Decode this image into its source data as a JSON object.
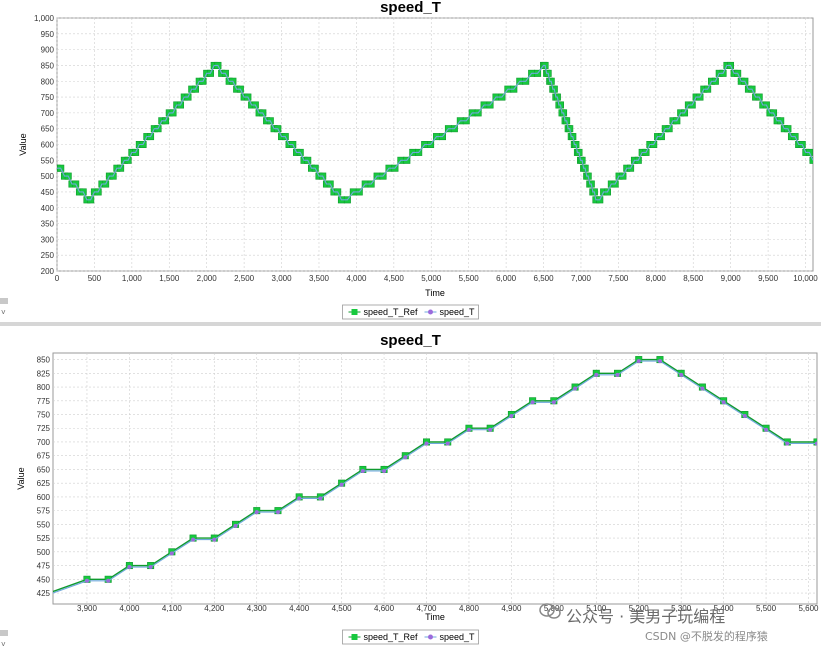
{
  "watermark": {
    "text_main": "公众号 · 美男子玩编程",
    "text_sub": "CSDN @不脱发的程序猿"
  },
  "colors": {
    "ref": "#17c93e",
    "ref_stroke": "#0f9a2e",
    "actual": "#9b6bdc",
    "actual_line": "#6fa8dc",
    "grid": "#cfcfcf"
  },
  "chart_data": [
    {
      "type": "line",
      "title": "speed_T",
      "xlabel": "Time",
      "ylabel": "Value",
      "xlim": [
        0,
        10100
      ],
      "ylim": [
        200,
        1000
      ],
      "xticks": [
        0,
        500,
        1000,
        1500,
        2000,
        2500,
        3000,
        3500,
        4000,
        4500,
        5000,
        5500,
        6000,
        6500,
        7000,
        7500,
        8000,
        8500,
        9000,
        9500,
        10000
      ],
      "xtick_labels": [
        "0",
        "500",
        "1,000",
        "1,500",
        "2,000",
        "2,500",
        "3,000",
        "3,500",
        "4,000",
        "4,500",
        "5,000",
        "5,500",
        "6,000",
        "6,500",
        "7,000",
        "7,500",
        "8,000",
        "8,500",
        "9,000",
        "9,500",
        "10,000"
      ],
      "yticks": [
        200,
        250,
        300,
        350,
        400,
        450,
        500,
        550,
        600,
        650,
        700,
        750,
        800,
        850,
        900,
        950,
        1000
      ],
      "ytick_labels": [
        "200",
        "250",
        "300",
        "350",
        "400",
        "450",
        "500",
        "550",
        "600",
        "650",
        "700",
        "750",
        "800",
        "850",
        "900",
        "950",
        "1,000"
      ],
      "grid": true,
      "legend": "bottom-center",
      "series": [
        {
          "name": "speed_T_Ref",
          "marker": "square",
          "x": [
            0,
            400,
            2100,
            3800,
            6500,
            7200,
            8950,
            10100
          ],
          "y": [
            525,
            425,
            850,
            425,
            850,
            425,
            850,
            550
          ]
        },
        {
          "name": "speed_T",
          "marker": "circle",
          "x": [
            0,
            400,
            2100,
            3800,
            6500,
            7200,
            8950,
            10100
          ],
          "y": [
            525,
            425,
            850,
            425,
            850,
            425,
            850,
            550
          ]
        }
      ]
    },
    {
      "type": "line",
      "title": "speed_T",
      "xlabel": "Time",
      "ylabel": "Value",
      "xlim": [
        3820,
        5620
      ],
      "ylim": [
        405,
        862
      ],
      "xticks": [
        3900,
        4000,
        4100,
        4200,
        4300,
        4400,
        4500,
        4600,
        4700,
        4800,
        4900,
        5000,
        5100,
        5200,
        5300,
        5400,
        5500,
        5600
      ],
      "xtick_labels": [
        "3,900",
        "4,000",
        "4,100",
        "4,200",
        "4,300",
        "4,400",
        "4,500",
        "4,600",
        "4,700",
        "4,800",
        "4,900",
        "5,000",
        "5,100",
        "5,200",
        "5,300",
        "5,400",
        "5,500",
        "5,600"
      ],
      "yticks": [
        425,
        450,
        475,
        500,
        525,
        550,
        575,
        600,
        625,
        650,
        675,
        700,
        725,
        750,
        775,
        800,
        825,
        850
      ],
      "ytick_labels": [
        "425",
        "450",
        "475",
        "500",
        "525",
        "550",
        "575",
        "600",
        "625",
        "650",
        "675",
        "700",
        "725",
        "750",
        "775",
        "800",
        "825",
        "850"
      ],
      "grid": true,
      "legend": "bottom-center",
      "series": [
        {
          "name": "speed_T_Ref",
          "marker": "square",
          "x": [
            3810,
            3900,
            3950,
            4000,
            4050,
            4100,
            4150,
            4200,
            4250,
            4300,
            4350,
            4400,
            4450,
            4500,
            4550,
            4600,
            4650,
            4700,
            4750,
            4800,
            4850,
            4900,
            4950,
            5000,
            5050,
            5100,
            5150,
            5200,
            5250,
            5300,
            5350,
            5400,
            5450,
            5500,
            5550,
            5620
          ],
          "y": [
            425,
            450,
            450,
            475,
            475,
            500,
            525,
            525,
            550,
            575,
            575,
            600,
            600,
            625,
            650,
            650,
            675,
            700,
            700,
            725,
            725,
            750,
            775,
            775,
            800,
            825,
            825,
            850,
            850,
            825,
            800,
            775,
            750,
            725,
            700,
            700
          ]
        },
        {
          "name": "speed_T",
          "marker": "circle",
          "x": [
            3810,
            3900,
            3950,
            4000,
            4050,
            4100,
            4150,
            4200,
            4250,
            4300,
            4350,
            4400,
            4450,
            4500,
            4550,
            4600,
            4650,
            4700,
            4750,
            4800,
            4850,
            4900,
            4950,
            5000,
            5050,
            5100,
            5150,
            5200,
            5250,
            5300,
            5350,
            5400,
            5450,
            5500,
            5550,
            5620
          ],
          "y": [
            425,
            450,
            450,
            475,
            475,
            500,
            525,
            525,
            550,
            575,
            575,
            600,
            600,
            625,
            650,
            650,
            675,
            700,
            700,
            725,
            725,
            750,
            775,
            775,
            800,
            825,
            825,
            850,
            850,
            825,
            800,
            775,
            750,
            725,
            700,
            700
          ]
        }
      ]
    }
  ]
}
